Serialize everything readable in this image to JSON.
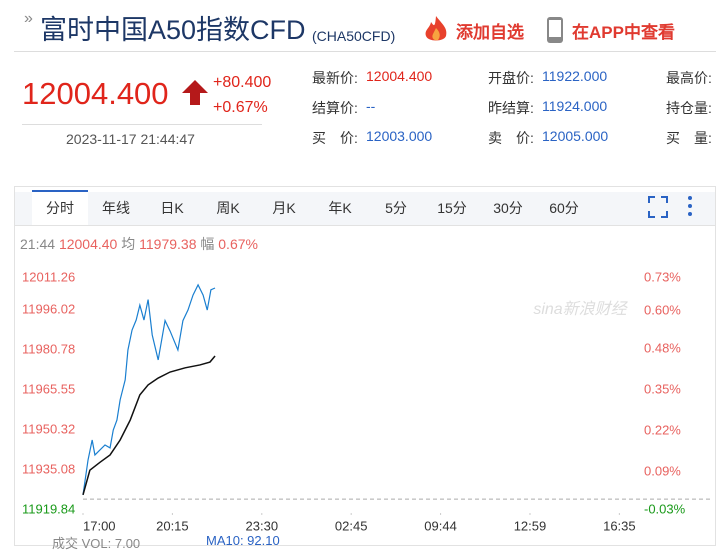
{
  "header": {
    "title": "富时中国A50指数CFD",
    "code": "(CHA50CFD)",
    "add_watchlist": "添加自选",
    "view_app": "在APP中查看"
  },
  "quote": {
    "price": "12004.400",
    "change": "+80.400",
    "change_pct": "+0.67%",
    "datetime": "2023-11-17 21:44:47",
    "fields": [
      [
        {
          "label": "最新价:",
          "value": "12004.400"
        },
        {
          "label": "开盘价:",
          "value": "11922.000"
        },
        {
          "label": "最高价:",
          "value": ""
        }
      ],
      [
        {
          "label": "结算价:",
          "value": "--"
        },
        {
          "label": "昨结算:",
          "value": "11924.000"
        },
        {
          "label": "持仓量:",
          "value": ""
        }
      ],
      [
        {
          "label": "买　价:",
          "value": "12003.000"
        },
        {
          "label": "卖　价:",
          "value": "12005.000"
        },
        {
          "label": "买　量:",
          "value": ""
        }
      ]
    ]
  },
  "tabs": [
    "分时",
    "年线",
    "日K",
    "周K",
    "月K",
    "年K",
    "5分",
    "15分",
    "30分",
    "60分"
  ],
  "info": {
    "time": "21:44",
    "price": "12004.40",
    "avg_label": "均",
    "avg": "11979.38",
    "amp_label": "幅",
    "amp": "0.67%"
  },
  "chart_data": {
    "type": "line",
    "watermark": "sina新浪财经",
    "xlim": [
      0,
      1215
    ],
    "xticks": [
      {
        "value": 0,
        "label": "17:00"
      },
      {
        "value": 195,
        "label": "20:15"
      },
      {
        "value": 390,
        "label": "23:30"
      },
      {
        "value": 585,
        "label": "02:45"
      },
      {
        "value": 780,
        "label": "09:44"
      },
      {
        "value": 975,
        "label": "12:59"
      },
      {
        "value": 1170,
        "label": "16:35"
      }
    ],
    "ylim": [
      11919.84,
      12011.26
    ],
    "yticks": [
      12011.26,
      11996.02,
      11980.78,
      11965.55,
      11950.32,
      11935.08,
      11919.84
    ],
    "y2lim": [
      -0.03,
      0.73
    ],
    "y2ticks": [
      {
        "value": 0.73,
        "label": "0.73%"
      },
      {
        "value": 0.6,
        "label": "0.60%"
      },
      {
        "value": 0.48,
        "label": "0.48%"
      },
      {
        "value": 0.35,
        "label": "0.35%"
      },
      {
        "value": 0.22,
        "label": "0.22%"
      },
      {
        "value": 0.09,
        "label": "0.09%"
      },
      {
        "value": -0.03,
        "label": "-0.03%"
      }
    ],
    "up_color": "#e8625f",
    "down_color": "#1a9a1a",
    "series": [
      {
        "name": "价格",
        "color": "#1a7fd0",
        "x": [
          0,
          11,
          20,
          26,
          37,
          48,
          59,
          66,
          74,
          81,
          92,
          98,
          107,
          116,
          124,
          133,
          142,
          151,
          164,
          179,
          190,
          207,
          218,
          229,
          240,
          251,
          262,
          271,
          279,
          288
        ],
        "values": [
          11925.6,
          11938.9,
          11946.5,
          11940.8,
          11942.7,
          11944.6,
          11943.5,
          11950.3,
          11954.1,
          11961.8,
          11969.4,
          11980.8,
          11988.4,
          11992.2,
          11997.9,
          11992.2,
          12000,
          11986.5,
          11977,
          11992,
          11988,
          11980.8,
          11992,
          11996,
          12001.7,
          12005.6,
          12001.7,
          11996,
          12003.7,
          12004.4
        ]
      },
      {
        "name": "均价",
        "color": "#111111",
        "x": [
          0,
          15,
          37,
          59,
          81,
          103,
          124,
          142,
          164,
          190,
          223,
          255,
          277,
          288
        ],
        "values": [
          11925.6,
          11935,
          11938,
          11940.8,
          11946.5,
          11954.1,
          11963.7,
          11967.5,
          11970.1,
          11972.4,
          11974,
          11975.1,
          11976.2,
          11978.5
        ]
      }
    ]
  },
  "footer": {
    "vol": "成交  VOL: 7.00",
    "ma": "MA10: 92.10"
  }
}
